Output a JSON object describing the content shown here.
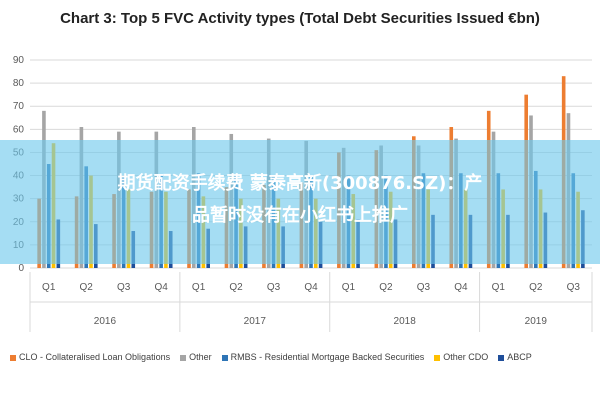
{
  "chart_data": {
    "type": "bar",
    "title": "Chart 3: Top 5 FVC Activity types (Total Debt Securities Issued €bn)",
    "xlabel": "",
    "ylabel": "",
    "ylim": [
      0,
      90
    ],
    "yticks": [
      0,
      10,
      20,
      30,
      40,
      50,
      60,
      70,
      80,
      90
    ],
    "grid": true,
    "legend_position": "bottom",
    "groups": [
      {
        "label": "2016",
        "categories": [
          "Q1",
          "Q2",
          "Q3",
          "Q4"
        ]
      },
      {
        "label": "2017",
        "categories": [
          "Q1",
          "Q2",
          "Q3",
          "Q4"
        ]
      },
      {
        "label": "2018",
        "categories": [
          "Q1",
          "Q2",
          "Q3",
          "Q4"
        ]
      },
      {
        "label": "2019",
        "categories": [
          "Q1",
          "Q2",
          "Q3"
        ]
      }
    ],
    "categories": [
      "Q1",
      "Q2",
      "Q3",
      "Q4",
      "Q1",
      "Q2",
      "Q3",
      "Q4",
      "Q1",
      "Q2",
      "Q3",
      "Q4",
      "Q1",
      "Q2",
      "Q3"
    ],
    "series": [
      {
        "name": "CLO - Collateralised Loan Obligations",
        "color": "#ed7d31",
        "values": [
          30,
          31,
          32,
          33,
          34,
          35,
          36,
          37,
          50,
          51,
          57,
          61,
          68,
          75,
          83
        ]
      },
      {
        "name": "Other",
        "color": "#a5a5a5",
        "values": [
          68,
          61,
          59,
          59,
          61,
          58,
          56,
          55,
          52,
          53,
          53,
          56,
          59,
          66,
          67
        ]
      },
      {
        "name": "RMBS - Residential Mortgage Backed Securities",
        "color": "#2e75b6",
        "values": [
          45,
          44,
          40,
          40,
          41,
          40,
          40,
          40,
          40,
          40,
          41,
          41,
          41,
          42,
          41
        ]
      },
      {
        "name": "Other CDO",
        "color": "#ffc000",
        "values": [
          54,
          40,
          34,
          33,
          31,
          30,
          30,
          30,
          32,
          33,
          34,
          34,
          34,
          34,
          33
        ]
      },
      {
        "name": "ABCP",
        "color": "#1f4e9a",
        "values": [
          21,
          19,
          16,
          16,
          17,
          18,
          18,
          20,
          21,
          21,
          23,
          23,
          23,
          24,
          25
        ]
      }
    ]
  },
  "overlay": {
    "line1": "期货配资手续费 蒙泰高新(300876.SZ)：产",
    "line2": "品暂时没有在小红书上推广"
  }
}
